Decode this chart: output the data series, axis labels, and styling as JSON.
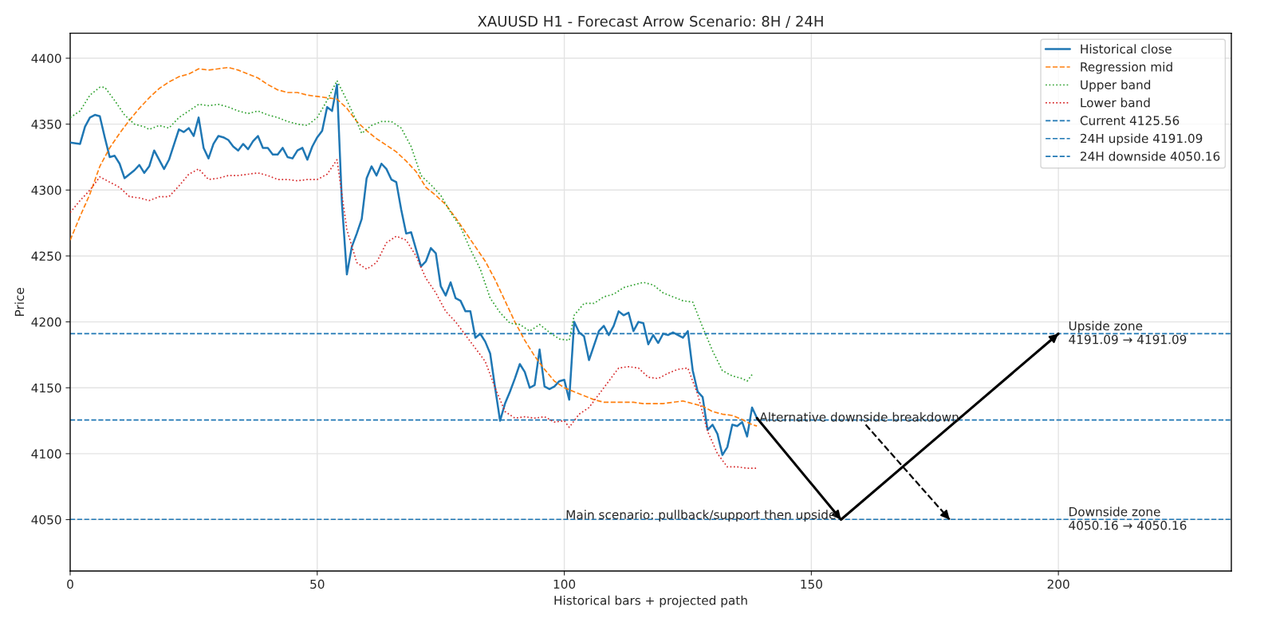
{
  "chart_data": {
    "type": "line",
    "title": "XAUUSD H1 - Forecast Arrow Scenario: 8H / 24H",
    "xlabel": "Historical bars + projected path",
    "ylabel": "Price",
    "xlim": [
      0,
      235
    ],
    "ylim": [
      4011,
      4419
    ],
    "xticks": [
      0,
      50,
      100,
      150,
      200
    ],
    "yticks": [
      4050,
      4100,
      4150,
      4200,
      4250,
      4300,
      4350,
      4400
    ],
    "grid": true,
    "legend": "top right",
    "series": [
      {
        "name": "Historical close",
        "color": "#1f77b4",
        "line_style": "solid",
        "x": [
          0,
          2,
          3,
          4,
          5,
          6,
          7,
          8,
          9,
          10,
          11,
          13,
          14,
          15,
          16,
          17,
          19,
          20,
          22,
          23,
          24,
          25,
          26,
          27,
          28,
          29,
          30,
          31,
          32,
          33,
          34,
          35,
          36,
          37,
          38,
          39,
          40,
          41,
          42,
          43,
          44,
          45,
          46,
          47,
          48,
          49,
          50,
          51,
          52,
          53,
          54,
          55,
          56,
          57,
          58,
          59,
          60,
          61,
          62,
          63,
          64,
          65,
          66,
          67,
          68,
          69,
          70,
          71,
          72,
          73,
          74,
          75,
          76,
          77,
          78,
          79,
          80,
          81,
          82,
          83,
          84,
          85,
          86,
          87,
          88,
          89,
          90,
          91,
          92,
          93,
          94,
          95,
          96,
          97,
          98,
          99,
          100,
          101,
          102,
          103,
          104,
          105,
          106,
          107,
          108,
          109,
          110,
          111,
          112,
          113,
          114,
          115,
          116,
          117,
          118,
          119,
          120,
          121,
          122,
          123,
          124,
          125,
          126,
          127,
          128,
          129,
          130,
          131,
          132,
          133,
          134,
          135,
          136,
          137,
          138,
          139
        ],
        "values": [
          4336,
          4335,
          4348,
          4355,
          4357,
          4356,
          4340,
          4325,
          4326,
          4320,
          4309,
          4315,
          4319,
          4313,
          4318,
          4330,
          4316,
          4323,
          4346,
          4344,
          4347,
          4341,
          4355,
          4332,
          4324,
          4335,
          4341,
          4340,
          4338,
          4333,
          4330,
          4335,
          4331,
          4337,
          4341,
          4332,
          4332,
          4327,
          4327,
          4332,
          4325,
          4324,
          4330,
          4332,
          4323,
          4333,
          4340,
          4345,
          4363,
          4360,
          4380,
          4290,
          4236,
          4257,
          4267,
          4278,
          4309,
          4318,
          4311,
          4320,
          4316,
          4308,
          4306,
          4285,
          4267,
          4268,
          4255,
          4242,
          4246,
          4256,
          4252,
          4227,
          4220,
          4230,
          4218,
          4216,
          4208,
          4208,
          4188,
          4191,
          4185,
          4176,
          4150,
          4125,
          4138,
          4147,
          4157,
          4168,
          4162,
          4150,
          4152,
          4179,
          4151,
          4149,
          4151,
          4155,
          4156,
          4141,
          4200,
          4192,
          4189,
          4171,
          4182,
          4193,
          4197,
          4190,
          4197,
          4208,
          4205,
          4207,
          4193,
          4200,
          4199,
          4183,
          4190,
          4184,
          4191,
          4190,
          4192,
          4190,
          4188,
          4193,
          4163,
          4147,
          4143,
          4118,
          4122,
          4115,
          4099,
          4105,
          4122,
          4121,
          4124,
          4113,
          4135,
          4127
        ]
      },
      {
        "name": "Regression mid",
        "color": "#ff7f0e",
        "line_style": "dashed",
        "x": [
          0,
          2,
          4,
          6,
          8,
          10,
          12,
          14,
          16,
          18,
          20,
          22,
          24,
          26,
          28,
          30,
          32,
          34,
          36,
          38,
          40,
          42,
          44,
          46,
          48,
          50,
          52,
          54,
          56,
          58,
          60,
          62,
          64,
          66,
          68,
          70,
          72,
          74,
          76,
          78,
          80,
          82,
          84,
          86,
          88,
          90,
          92,
          94,
          96,
          98,
          100,
          102,
          104,
          106,
          108,
          110,
          112,
          114,
          116,
          118,
          120,
          122,
          124,
          126,
          128,
          130,
          132,
          134,
          136,
          138,
          139
        ],
        "values": [
          4262,
          4280,
          4297,
          4318,
          4332,
          4343,
          4353,
          4362,
          4370,
          4377,
          4382,
          4386,
          4388,
          4392,
          4391,
          4392,
          4393,
          4391,
          4388,
          4385,
          4380,
          4376,
          4374,
          4374,
          4372,
          4371,
          4370,
          4369,
          4362,
          4352,
          4345,
          4339,
          4334,
          4329,
          4322,
          4314,
          4302,
          4296,
          4289,
          4279,
          4268,
          4257,
          4246,
          4232,
          4216,
          4200,
          4186,
          4174,
          4164,
          4155,
          4150,
          4147,
          4144,
          4141,
          4139,
          4139,
          4139,
          4139,
          4138,
          4138,
          4138,
          4139,
          4140,
          4138,
          4136,
          4132,
          4130,
          4129,
          4126,
          4122,
          4121
        ]
      },
      {
        "name": "Upper band",
        "color": "#2ca02c",
        "line_style": "dotted",
        "x": [
          0,
          2,
          4,
          6,
          7,
          9,
          11,
          13,
          15,
          16,
          18,
          20,
          22,
          24,
          26,
          28,
          30,
          32,
          34,
          36,
          38,
          40,
          42,
          44,
          46,
          48,
          50,
          52,
          54,
          56,
          58,
          59,
          61,
          63,
          65,
          67,
          69,
          71,
          73,
          75,
          77,
          79,
          81,
          83,
          85,
          87,
          89,
          91,
          93,
          95,
          97,
          99,
          101,
          102,
          104,
          106,
          108,
          110,
          112,
          114,
          116,
          118,
          120,
          122,
          124,
          126,
          128,
          130,
          132,
          134,
          136,
          137,
          138
        ],
        "values": [
          4355,
          4360,
          4372,
          4378,
          4378,
          4368,
          4357,
          4350,
          4348,
          4346,
          4349,
          4347,
          4355,
          4360,
          4365,
          4364,
          4365,
          4363,
          4360,
          4358,
          4360,
          4357,
          4355,
          4352,
          4350,
          4349,
          4355,
          4368,
          4383,
          4368,
          4352,
          4343,
          4349,
          4352,
          4352,
          4347,
          4333,
          4311,
          4304,
          4296,
          4283,
          4272,
          4255,
          4240,
          4218,
          4207,
          4199,
          4198,
          4193,
          4198,
          4192,
          4187,
          4186,
          4205,
          4214,
          4214,
          4219,
          4221,
          4226,
          4228,
          4230,
          4228,
          4222,
          4219,
          4216,
          4215,
          4196,
          4178,
          4163,
          4159,
          4157,
          4155,
          4160
        ]
      },
      {
        "name": "Lower band",
        "color": "#d62728",
        "line_style": "dotted",
        "x": [
          0,
          2,
          4,
          6,
          8,
          10,
          12,
          14,
          16,
          18,
          20,
          22,
          24,
          26,
          28,
          30,
          32,
          34,
          36,
          38,
          40,
          42,
          44,
          46,
          48,
          50,
          52,
          54,
          56,
          58,
          60,
          62,
          64,
          66,
          68,
          70,
          72,
          74,
          76,
          78,
          80,
          82,
          84,
          86,
          88,
          90,
          92,
          94,
          96,
          98,
          100,
          101,
          103,
          105,
          107,
          109,
          111,
          113,
          115,
          117,
          119,
          121,
          123,
          125,
          127,
          129,
          131,
          133,
          135,
          137,
          139
        ],
        "values": [
          4283,
          4292,
          4300,
          4310,
          4306,
          4302,
          4295,
          4294,
          4292,
          4295,
          4295,
          4303,
          4312,
          4316,
          4308,
          4309,
          4311,
          4311,
          4312,
          4313,
          4311,
          4308,
          4308,
          4307,
          4308,
          4308,
          4312,
          4323,
          4270,
          4245,
          4240,
          4245,
          4260,
          4265,
          4262,
          4250,
          4233,
          4222,
          4208,
          4200,
          4190,
          4180,
          4170,
          4150,
          4132,
          4127,
          4128,
          4127,
          4128,
          4124,
          4125,
          4120,
          4130,
          4135,
          4145,
          4155,
          4165,
          4166,
          4165,
          4158,
          4157,
          4161,
          4164,
          4165,
          4145,
          4117,
          4100,
          4090,
          4090,
          4089,
          4089
        ]
      },
      {
        "color": "#000000",
        "line_style": "solid",
        "x": [
          139,
          156,
          200
        ],
        "values": [
          4127,
          4050,
          4191
        ]
      },
      {
        "color": "#000000",
        "line_style": "dashed",
        "x": [
          161,
          178
        ],
        "values": [
          4122,
          4050
        ]
      }
    ],
    "ref_lines": [
      {
        "axis": "y",
        "value": 4125.56,
        "label": "Current 4125.56",
        "color": "#1f77b4",
        "line_style": "dashed"
      },
      {
        "axis": "y",
        "value": 4191.09,
        "label": "24H upside 4191.09",
        "color": "#1f77b4",
        "line_style": "dashed"
      },
      {
        "axis": "y",
        "value": 4050.16,
        "label": "24H downside 4050.16",
        "color": "#1f77b4",
        "line_style": "dashed"
      }
    ],
    "annotations": [
      {
        "text": "Alternative downside breakdown",
        "x": 139.5,
        "y": 4127
      },
      {
        "text": "Main scenario: pullback/support then upside",
        "x": 155,
        "y": 4053
      },
      {
        "text": "Upside zone\n4191.09 → 4191.09",
        "x": 202,
        "y": 4191
      },
      {
        "text": "Downside zone\n4050.16 → 4050.16",
        "x": 202,
        "y": 4050
      }
    ]
  }
}
